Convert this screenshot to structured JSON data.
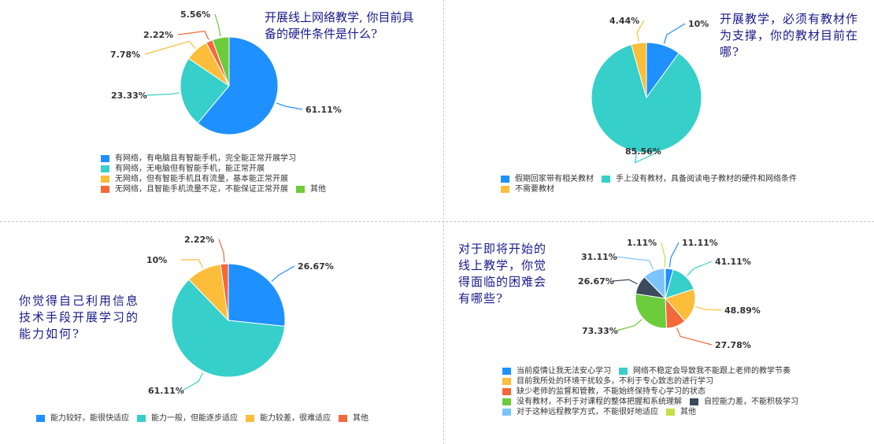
{
  "colors": {
    "blue": "#1e90ff",
    "teal": "#36cfc9",
    "yellow": "#fbbd3a",
    "orange": "#f5683a",
    "green": "#6ccc3c",
    "navy": "#3b4a5c",
    "lightblue": "#7cc4ff",
    "lime": "#c4e04a"
  },
  "chart_data": [
    {
      "type": "pie",
      "title": "开展线上网络教学，你目前具备的硬件条件是什么?",
      "slices": [
        {
          "label": "有网络，有电脑且有智能手机，完全能正常开展学习",
          "value": 61.11,
          "text": "61.11%",
          "color": "#1e90ff"
        },
        {
          "label": "有网络，无电脑但有智能手机，能正常开展",
          "value": 23.33,
          "text": "23.33%",
          "color": "#36cfc9"
        },
        {
          "label": "无网络，但有智能手机且有流量，基本能正常开展",
          "value": 7.78,
          "text": "7.78%",
          "color": "#fbbd3a"
        },
        {
          "label": "无网络，且智能手机流量不足，不能保证正常开展",
          "value": 2.22,
          "text": "2.22%",
          "color": "#f5683a"
        },
        {
          "label": "其他",
          "value": 5.56,
          "text": "5.56%",
          "color": "#6ccc3c"
        }
      ]
    },
    {
      "type": "pie",
      "title": "开展教学，必须有教材作为支撑，你的教材目前在哪?",
      "slices": [
        {
          "label": "假期回家带有相关教材",
          "value": 10,
          "text": "10%",
          "color": "#1e90ff"
        },
        {
          "label": "手上没有教材，具备阅读电子教材的硬件和网络条件",
          "value": 85.56,
          "text": "85.56%",
          "color": "#36cfc9"
        },
        {
          "label": "不需要教材",
          "value": 4.44,
          "text": "4.44%",
          "color": "#fbbd3a"
        }
      ]
    },
    {
      "type": "pie",
      "title": "你觉得自己利用信息技术手段开展学习的能力如何?",
      "slices": [
        {
          "label": "能力较好，能很快适应",
          "value": 26.67,
          "text": "26.67%",
          "color": "#1e90ff"
        },
        {
          "label": "能力一般，但能逐步适应",
          "value": 61.11,
          "text": "61.11%",
          "color": "#36cfc9"
        },
        {
          "label": "能力较差，很难适应",
          "value": 10,
          "text": "10%",
          "color": "#fbbd3a"
        },
        {
          "label": "其他",
          "value": 2.22,
          "text": "2.22%",
          "color": "#f5683a"
        }
      ]
    },
    {
      "type": "pie",
      "title": "对于即将开始的线上教学，你觉得面临的困难会有哪些?",
      "slices": [
        {
          "label": "当前疫情让我无法安心学习",
          "value": 11.11,
          "text": "11.11%",
          "color": "#1e90ff"
        },
        {
          "label": "网络不稳定会导致我不能跟上老师的教学节奏",
          "value": 41.11,
          "text": "41.11%",
          "color": "#36cfc9"
        },
        {
          "label": "目前我所处的环境干扰较多，不利于专心致志的进行学习",
          "value": 48.89,
          "text": "48.89%",
          "color": "#fbbd3a"
        },
        {
          "label": "缺少老师的监督和管教，不能始终保持专心学习的状态",
          "value": 27.78,
          "text": "27.78%",
          "color": "#f5683a"
        },
        {
          "label": "没有教材，不利于对课程的整体把握和系统理解",
          "value": 73.33,
          "text": "73.33%",
          "color": "#6ccc3c"
        },
        {
          "label": "自控能力差，不能积极学习",
          "value": 26.67,
          "text": "26.67%",
          "color": "#3b4a5c"
        },
        {
          "label": "对于这种远程教学方式，不能很好地适应",
          "value": 31.11,
          "text": "31.11%",
          "color": "#7cc4ff"
        },
        {
          "label": "其他",
          "value": 1.11,
          "text": "1.11%",
          "color": "#c4e04a"
        }
      ]
    }
  ],
  "q1": {
    "line1": "开展线上网络教学, 你目前具",
    "line2": "备的硬件条件是什么?"
  },
  "q2": {
    "line1": "开展教学，必须有教材作",
    "line2": "为支撑，你的教材目前在",
    "line3": "哪?"
  },
  "q3": {
    "line1": "你觉得自己利用信息",
    "line2": "技术手段开展学习的",
    "line3": "能力如何?"
  },
  "q4": {
    "line1": "对于即将开始的",
    "line2": "线上教学，你觉",
    "line3": "得面临的困难会",
    "line4": "有哪些?"
  }
}
